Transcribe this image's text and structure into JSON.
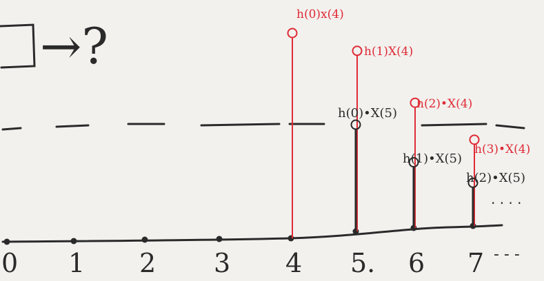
{
  "header": {
    "arrow_text": "→?"
  },
  "axis": {
    "ticks": [
      "0",
      "1",
      "2",
      "3",
      "4",
      "5.",
      "6",
      "7"
    ],
    "continuation": "- - -"
  },
  "stems": [
    {
      "n": 4,
      "color": "red",
      "label": "h(0)x(4)",
      "value": 1.0
    },
    {
      "n": 5,
      "color": "red",
      "label": "h(1)X(4)",
      "value": 0.88
    },
    {
      "n": 5,
      "color": "black",
      "label": "h(0)•X(5)",
      "value": 0.52
    },
    {
      "n": 6,
      "color": "red",
      "label": "h(2)•X(4)",
      "value": 0.61
    },
    {
      "n": 6,
      "color": "black",
      "label": "h(1)•X(5)",
      "value": 0.32
    },
    {
      "n": 7,
      "color": "red",
      "label": "h(3)•X(4)",
      "value": 0.42
    },
    {
      "n": 7,
      "color": "black",
      "label": "h(2)•X(5)",
      "value": 0.21
    }
  ],
  "trailing_dots": "· · · ·",
  "colors": {
    "red": "#e02a35",
    "black": "#2a2a2a"
  }
}
